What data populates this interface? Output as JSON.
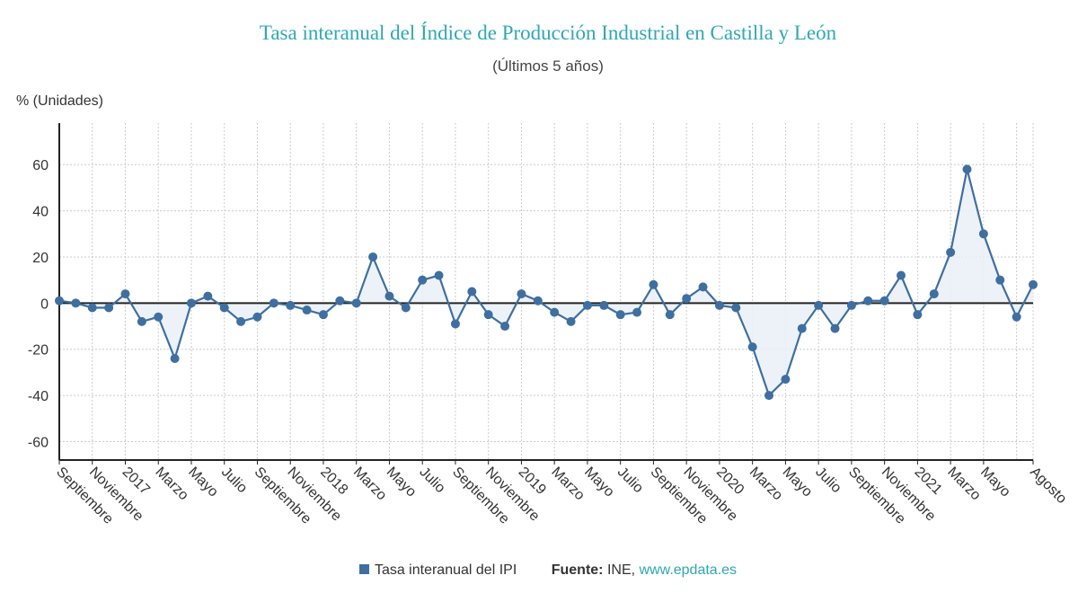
{
  "chart_data": {
    "type": "line",
    "title": "Tasa interanual del Índice de Producción Industrial en Castilla y León",
    "subtitle": "(Últimos 5 años)",
    "ylabel": "% (Unidades)",
    "xlabel": "",
    "ylim": [
      -68,
      78
    ],
    "yticks": [
      -60,
      -40,
      -20,
      0,
      20,
      40,
      60
    ],
    "grid": true,
    "legend_position": "bottom",
    "x_tick_labels": [
      "Septiembre",
      "Noviembre",
      "2017",
      "Marzo",
      "Mayo",
      "Julio",
      "Septiembre",
      "Noviembre",
      "2018",
      "Marzo",
      "Mayo",
      "Julio",
      "Septiembre",
      "Noviembre",
      "2019",
      "Marzo",
      "Mayo",
      "Julio",
      "Septiembre",
      "Noviembre",
      "2020",
      "Marzo",
      "Mayo",
      "Julio",
      "Septiembre",
      "Noviembre",
      "2021",
      "Marzo",
      "Mayo",
      "Agosto"
    ],
    "x_tick_indices": [
      0,
      2,
      4,
      6,
      8,
      10,
      12,
      14,
      16,
      18,
      20,
      22,
      24,
      26,
      28,
      30,
      32,
      34,
      36,
      38,
      40,
      42,
      44,
      46,
      48,
      50,
      52,
      54,
      56,
      59
    ],
    "series": [
      {
        "name": "Tasa interanual del IPI",
        "color": "#3f6fa0",
        "values": [
          1,
          0,
          -2,
          -2,
          4,
          -8,
          -6,
          -24,
          0,
          3,
          -2,
          -8,
          -6,
          0,
          -1,
          -3,
          -5,
          1,
          0,
          20,
          3,
          -2,
          10,
          12,
          -9,
          5,
          -5,
          -10,
          4,
          1,
          -4,
          -8,
          -1,
          -1,
          -5,
          -4,
          8,
          -5,
          2,
          7,
          -1,
          -2,
          -19,
          -40,
          -33,
          -11,
          -1,
          -11,
          -1,
          1,
          1,
          12,
          -5,
          4,
          22,
          58,
          30,
          10,
          -6,
          8
        ]
      }
    ]
  },
  "legend": {
    "label": "Tasa interanual del IPI"
  },
  "source": {
    "label": "Fuente:",
    "text": "INE,",
    "link": "www.epdata.es"
  }
}
